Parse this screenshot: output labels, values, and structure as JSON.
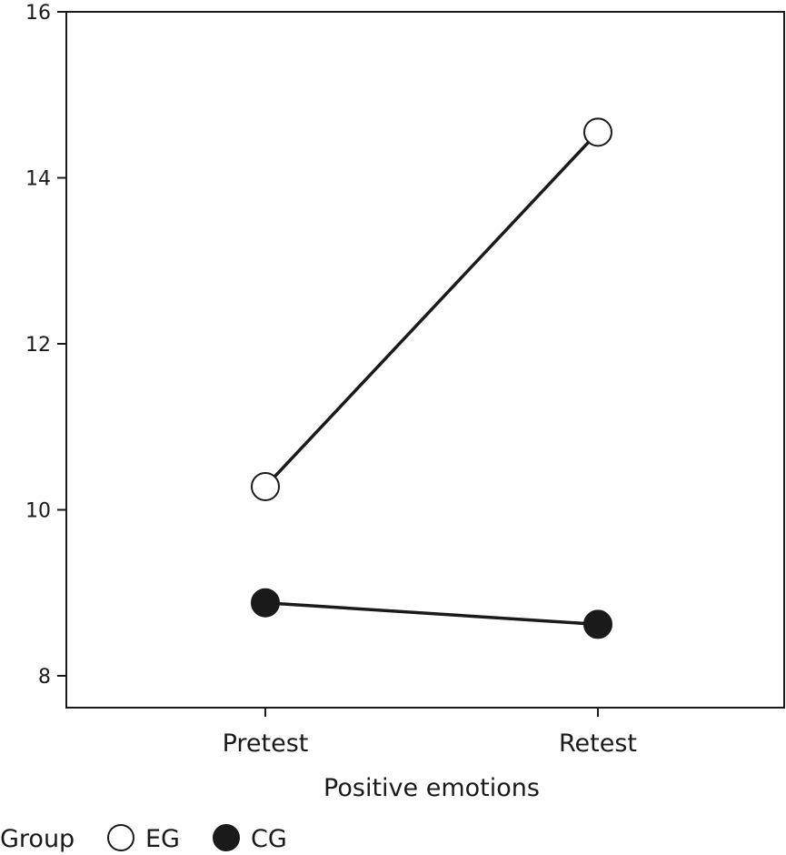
{
  "chart_data": {
    "type": "line",
    "xlabel": "Positive emotions",
    "ylabel": "",
    "categories": [
      "Pretest",
      "Retest"
    ],
    "ylim": [
      7.5,
      16
    ],
    "yticks": [
      8,
      10,
      12,
      14,
      16
    ],
    "grid": false,
    "legend": {
      "title": "Group",
      "position": "bottom-left",
      "entries": [
        "EG",
        "CG"
      ]
    },
    "series": [
      {
        "name": "EG",
        "values": [
          10.28,
          14.55
        ],
        "marker": "open-circle",
        "color": "#ffffff"
      },
      {
        "name": "CG",
        "values": [
          8.88,
          8.62
        ],
        "marker": "filled-circle",
        "color": "#1a1a1a"
      }
    ]
  }
}
